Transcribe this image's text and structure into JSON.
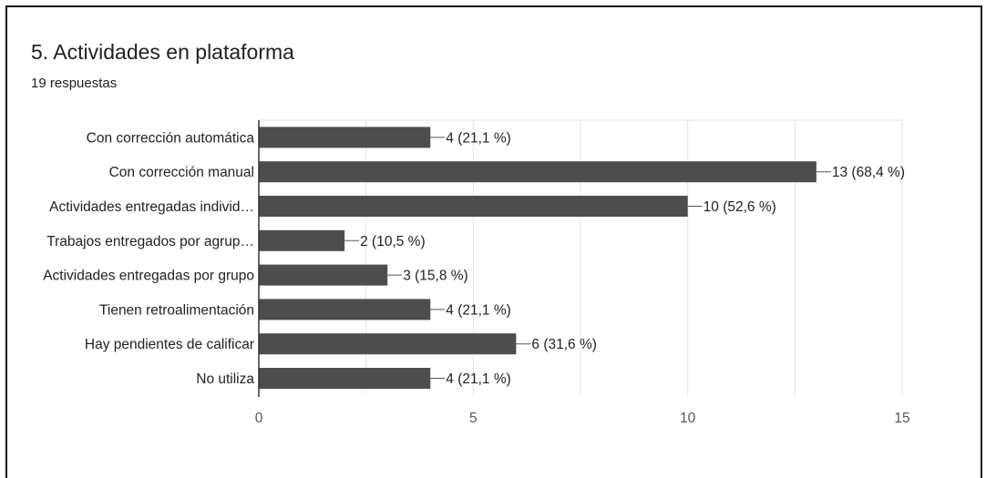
{
  "header": {
    "title": "5.  Actividades en plataforma",
    "responses": "19 respuestas"
  },
  "colors": {
    "bar": "#4d4d4d",
    "grid": "#e3e3e3",
    "axis": "#333333",
    "text": "#202124"
  },
  "chart_data": {
    "type": "bar",
    "orientation": "horizontal",
    "title": "5.  Actividades en plataforma",
    "subtitle": "19 respuestas",
    "categories": [
      "Con corrección automática",
      "Con corrección manual",
      "Actividades entregadas individ…",
      "Trabajos entregados por agrup…",
      "Actividades entregadas por grupo",
      "Tienen retroalimentación",
      "Hay pendientes de calificar",
      "No utiliza"
    ],
    "values": [
      4,
      13,
      10,
      2,
      3,
      4,
      6,
      4
    ],
    "data_labels": [
      "4 (21,1 %)",
      "13 (68,4 %)",
      "10 (52,6 %)",
      "2 (10,5 %)",
      "3 (15,8 %)",
      "4 (21,1 %)",
      "6 (31,6 %)",
      "4 (21,1 %)"
    ],
    "xlim": [
      0,
      15
    ],
    "xticks": [
      0,
      5,
      10,
      15
    ],
    "grid": true,
    "legend": "none"
  }
}
